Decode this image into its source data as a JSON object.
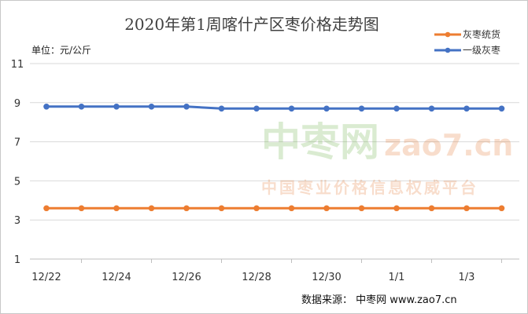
{
  "chart_data": {
    "type": "line",
    "title": "2020年第1周喀什产区枣价格走势图",
    "unit_label": "单位：元/公斤",
    "x": [
      "12/22",
      "12/23",
      "12/24",
      "12/25",
      "12/26",
      "12/27",
      "12/28",
      "12/29",
      "12/30",
      "12/31",
      "1/1",
      "1/2",
      "1/3",
      "1/4"
    ],
    "x_tick_labels": [
      "12/22",
      "12/24",
      "12/26",
      "12/28",
      "12/30",
      "1/1",
      "1/3"
    ],
    "ylim": [
      1,
      11
    ],
    "y_ticks": [
      1,
      3,
      5,
      7,
      9,
      11
    ],
    "grid": true,
    "legend_position": "top-right",
    "series": [
      {
        "name": "灰枣统货",
        "color": "#ED7D31",
        "values": [
          3.6,
          3.6,
          3.6,
          3.6,
          3.6,
          3.6,
          3.6,
          3.6,
          3.6,
          3.6,
          3.6,
          3.6,
          3.6,
          3.6
        ]
      },
      {
        "name": "一级灰枣",
        "color": "#4472C4",
        "values": [
          8.8,
          8.8,
          8.8,
          8.8,
          8.8,
          8.7,
          8.7,
          8.7,
          8.7,
          8.7,
          8.7,
          8.7,
          8.7,
          8.7
        ]
      }
    ]
  },
  "watermark": {
    "brand": "中枣网",
    "domain": "zao7.cn",
    "slogan": "中国枣业价格信息权威平台"
  },
  "source_text": "数据来源：  中枣网 www.zao7.cn"
}
